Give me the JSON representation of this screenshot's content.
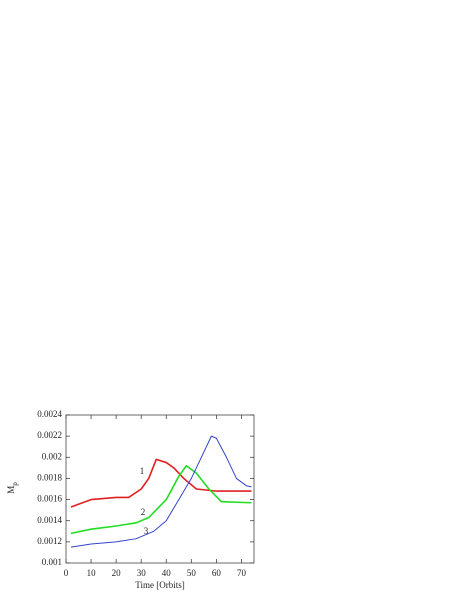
{
  "chart_data": {
    "type": "line",
    "x_label": "Time [Orbits]",
    "y_label": {
      "text": "M",
      "subscript": "p"
    },
    "xlim": [
      0,
      75
    ],
    "xticks": [
      0,
      10,
      20,
      30,
      40,
      50,
      60,
      70
    ],
    "ylim": [
      0.001,
      0.0024
    ],
    "yticks": [
      0.001,
      0.0012,
      0.0014,
      0.0016,
      0.0018,
      0.002,
      0.0022,
      0.0024
    ],
    "series": [
      {
        "name": "1",
        "color": "#e02020",
        "x": [
          2,
          10,
          20,
          25,
          30,
          33,
          36,
          40,
          43,
          47,
          52,
          60,
          74
        ],
        "values": [
          0.00153,
          0.0016,
          0.00162,
          0.00162,
          0.0017,
          0.0018,
          0.00198,
          0.00195,
          0.0019,
          0.0018,
          0.0017,
          0.00168,
          0.00168
        ]
      },
      {
        "name": "2",
        "color": "#22dd22",
        "x": [
          2,
          10,
          20,
          28,
          33,
          40,
          45,
          48,
          52,
          57,
          62,
          74
        ],
        "values": [
          0.00128,
          0.00132,
          0.00135,
          0.00138,
          0.00143,
          0.0016,
          0.00182,
          0.00192,
          0.00185,
          0.0017,
          0.00158,
          0.00157
        ]
      },
      {
        "name": "3",
        "color": "#3344cc",
        "x": [
          2,
          10,
          20,
          28,
          35,
          40,
          45,
          50,
          54,
          58,
          60,
          64,
          68,
          72,
          74
        ],
        "values": [
          0.00115,
          0.00118,
          0.0012,
          0.00123,
          0.0013,
          0.0014,
          0.0016,
          0.0018,
          0.002,
          0.0022,
          0.00218,
          0.002,
          0.0018,
          0.00173,
          0.00172
        ]
      }
    ]
  }
}
